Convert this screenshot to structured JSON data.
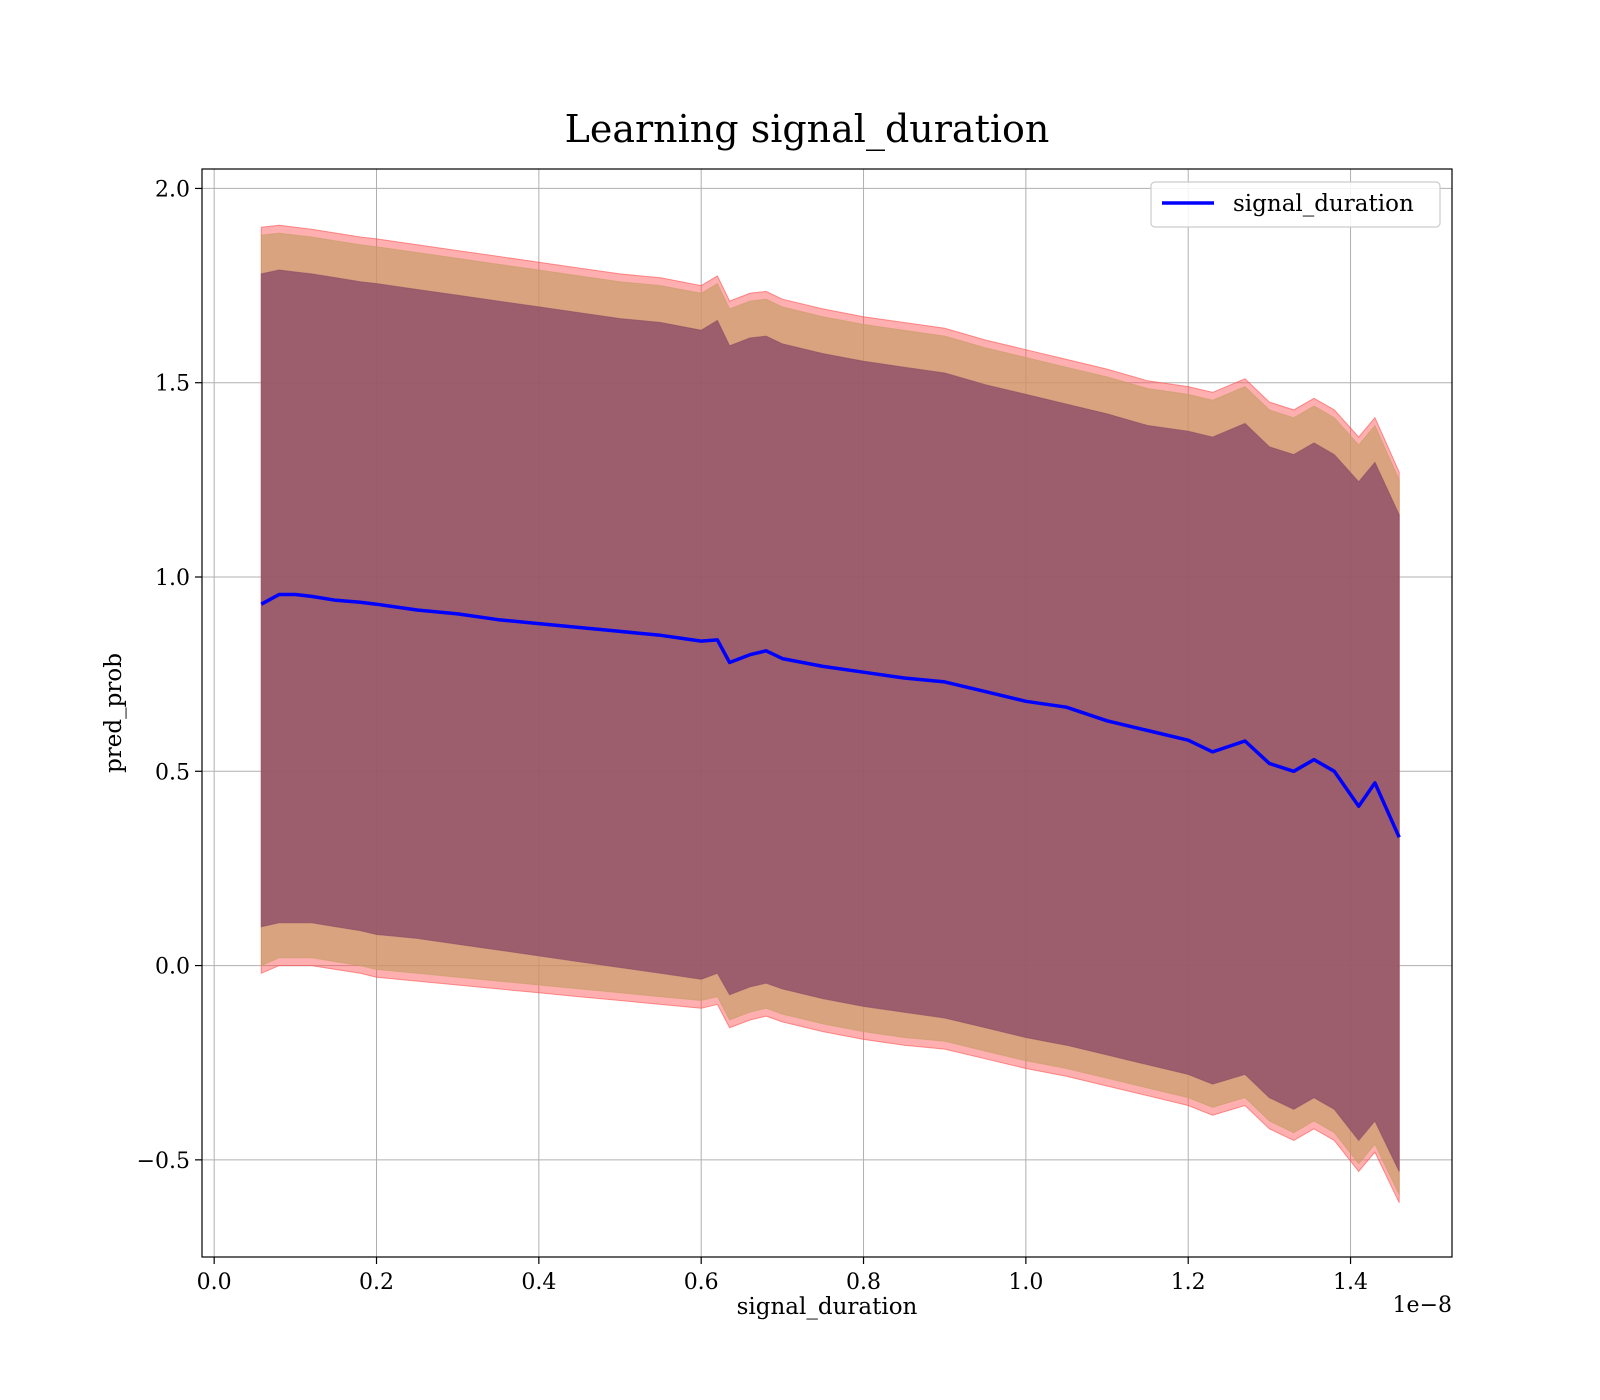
{
  "chart_data": {
    "type": "line",
    "title": "Learning signal_duration",
    "xlabel": "signal_duration",
    "ylabel": "pred_prob",
    "x_offset_text": "1e−8",
    "xlim": [
      -0.015,
      1.525
    ],
    "ylim": [
      -0.75,
      2.05
    ],
    "xticks": [
      0.0,
      0.2,
      0.4,
      0.6,
      0.8,
      1.0,
      1.2,
      1.4
    ],
    "xtick_labels": [
      "0.0",
      "0.2",
      "0.4",
      "0.6",
      "0.8",
      "1.0",
      "1.2",
      "1.4"
    ],
    "yticks": [
      -0.5,
      0.0,
      0.5,
      1.0,
      1.5,
      2.0
    ],
    "ytick_labels": [
      "−0.5",
      "0.0",
      "0.5",
      "1.0",
      "1.5",
      "2.0"
    ],
    "grid": true,
    "legend_position": "top-right",
    "legend": [
      "signal_duration"
    ],
    "x": [
      0.058,
      0.08,
      0.1,
      0.12,
      0.15,
      0.18,
      0.2,
      0.25,
      0.3,
      0.35,
      0.4,
      0.45,
      0.5,
      0.55,
      0.6,
      0.62,
      0.635,
      0.66,
      0.68,
      0.7,
      0.75,
      0.8,
      0.85,
      0.9,
      0.95,
      1.0,
      1.05,
      1.1,
      1.15,
      1.2,
      1.23,
      1.27,
      1.3,
      1.33,
      1.355,
      1.38,
      1.41,
      1.43,
      1.46
    ],
    "series": [
      {
        "name": "signal_duration",
        "color": "#0000ff",
        "values": [
          0.93,
          0.955,
          0.955,
          0.95,
          0.94,
          0.935,
          0.93,
          0.915,
          0.905,
          0.89,
          0.88,
          0.87,
          0.86,
          0.85,
          0.835,
          0.838,
          0.78,
          0.8,
          0.81,
          0.79,
          0.77,
          0.755,
          0.74,
          0.73,
          0.705,
          0.68,
          0.665,
          0.63,
          0.605,
          0.58,
          0.55,
          0.578,
          0.52,
          0.5,
          0.53,
          0.5,
          0.41,
          0.47,
          0.33
        ]
      }
    ],
    "bands": [
      {
        "color": "#ff4d4d",
        "opacity": 0.45,
        "upper": [
          1.9,
          1.905,
          1.9,
          1.895,
          1.885,
          1.875,
          1.87,
          1.855,
          1.84,
          1.825,
          1.81,
          1.795,
          1.78,
          1.77,
          1.75,
          1.775,
          1.71,
          1.73,
          1.735,
          1.715,
          1.69,
          1.67,
          1.655,
          1.64,
          1.61,
          1.585,
          1.56,
          1.535,
          1.505,
          1.49,
          1.475,
          1.51,
          1.45,
          1.43,
          1.46,
          1.43,
          1.36,
          1.41,
          1.27
        ],
        "lower": [
          -0.02,
          0.0,
          0.0,
          0.0,
          -0.01,
          -0.02,
          -0.03,
          -0.04,
          -0.05,
          -0.06,
          -0.07,
          -0.08,
          -0.09,
          -0.1,
          -0.11,
          -0.1,
          -0.16,
          -0.14,
          -0.13,
          -0.145,
          -0.17,
          -0.19,
          -0.205,
          -0.215,
          -0.24,
          -0.265,
          -0.285,
          -0.31,
          -0.335,
          -0.36,
          -0.385,
          -0.36,
          -0.42,
          -0.45,
          -0.42,
          -0.45,
          -0.53,
          -0.48,
          -0.61
        ]
      },
      {
        "color": "#c89e6a",
        "opacity": 0.7,
        "upper": [
          1.88,
          1.885,
          1.88,
          1.875,
          1.865,
          1.855,
          1.85,
          1.835,
          1.82,
          1.805,
          1.79,
          1.775,
          1.76,
          1.75,
          1.73,
          1.755,
          1.69,
          1.71,
          1.715,
          1.695,
          1.67,
          1.65,
          1.635,
          1.62,
          1.59,
          1.565,
          1.54,
          1.515,
          1.485,
          1.47,
          1.455,
          1.49,
          1.43,
          1.41,
          1.44,
          1.41,
          1.34,
          1.39,
          1.25
        ],
        "lower": [
          0.0,
          0.02,
          0.02,
          0.02,
          0.01,
          0.0,
          -0.01,
          -0.02,
          -0.03,
          -0.04,
          -0.05,
          -0.06,
          -0.07,
          -0.08,
          -0.09,
          -0.08,
          -0.14,
          -0.12,
          -0.11,
          -0.125,
          -0.15,
          -0.17,
          -0.185,
          -0.195,
          -0.22,
          -0.245,
          -0.265,
          -0.29,
          -0.315,
          -0.34,
          -0.365,
          -0.34,
          -0.4,
          -0.43,
          -0.4,
          -0.43,
          -0.51,
          -0.46,
          -0.59
        ]
      },
      {
        "color": "#8a4a66",
        "opacity": 0.78,
        "upper": [
          1.78,
          1.79,
          1.785,
          1.78,
          1.77,
          1.76,
          1.755,
          1.74,
          1.725,
          1.71,
          1.695,
          1.68,
          1.665,
          1.655,
          1.635,
          1.66,
          1.595,
          1.615,
          1.62,
          1.6,
          1.575,
          1.555,
          1.54,
          1.525,
          1.495,
          1.47,
          1.445,
          1.42,
          1.39,
          1.375,
          1.36,
          1.395,
          1.335,
          1.315,
          1.345,
          1.315,
          1.245,
          1.295,
          1.16
        ],
        "lower": [
          0.1,
          0.11,
          0.11,
          0.11,
          0.1,
          0.09,
          0.08,
          0.07,
          0.055,
          0.04,
          0.025,
          0.01,
          -0.005,
          -0.02,
          -0.035,
          -0.02,
          -0.075,
          -0.055,
          -0.045,
          -0.06,
          -0.085,
          -0.105,
          -0.12,
          -0.135,
          -0.16,
          -0.185,
          -0.205,
          -0.23,
          -0.255,
          -0.28,
          -0.305,
          -0.28,
          -0.34,
          -0.37,
          -0.34,
          -0.37,
          -0.45,
          -0.4,
          -0.53
        ]
      }
    ]
  }
}
